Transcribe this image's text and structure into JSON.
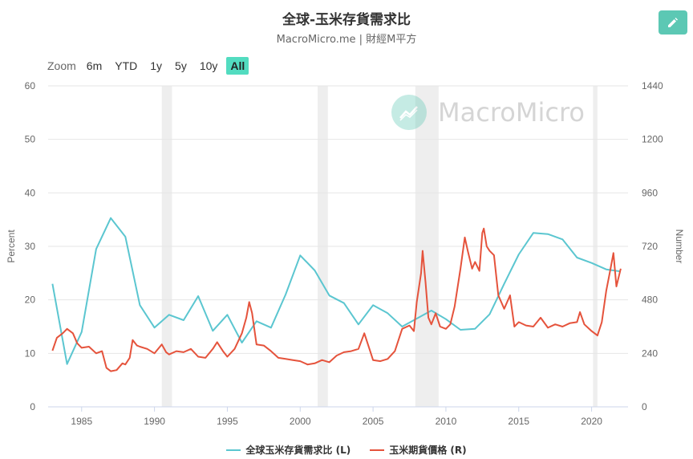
{
  "header": {
    "title": "全球-玉米存貨需求比",
    "subtitle": "MacroMicro.me | 財經M平方"
  },
  "toolbar": {
    "zoom_label": "Zoom",
    "ranges": [
      "6m",
      "YTD",
      "1y",
      "5y",
      "10y",
      "All"
    ],
    "active_range": "All",
    "edit_icon": "pencil-icon"
  },
  "watermark": {
    "text": "MacroMicro",
    "icon": "macromicro-logo-icon"
  },
  "colors": {
    "stock_ratio": "#5bc6d0",
    "price": "#e5533c",
    "recession": "#eeeeee",
    "grid": "#e6e6e6"
  },
  "chart_data": {
    "type": "line",
    "title": "全球-玉米存貨需求比",
    "subtitle": "MacroMicro.me | 財經M平方",
    "x_range": [
      1982.7,
      2022.5
    ],
    "x_ticks": [
      1985,
      1990,
      1995,
      2000,
      2005,
      2010,
      2015,
      2020
    ],
    "left_axis": {
      "label": "Percent",
      "range": [
        0,
        60
      ],
      "ticks": [
        0,
        10,
        20,
        30,
        40,
        50,
        60
      ]
    },
    "right_axis": {
      "label": "Number",
      "range": [
        0,
        1440
      ],
      "ticks": [
        0,
        240,
        480,
        720,
        960,
        1200,
        1440
      ]
    },
    "grid": true,
    "legend_position": "bottom",
    "recession_bands": [
      [
        1990.5,
        1991.2
      ],
      [
        2001.2,
        2001.9
      ],
      [
        2007.9,
        2009.5
      ],
      [
        2020.1,
        2020.4
      ]
    ],
    "series": [
      {
        "name": "全球玉米存貨需求比 (L)",
        "axis": "left",
        "color": "#5bc6d0",
        "points": [
          [
            1983,
            23
          ],
          [
            1984,
            8
          ],
          [
            1985,
            14
          ],
          [
            1986,
            29.5
          ],
          [
            1987,
            35.3
          ],
          [
            1988,
            31.8
          ],
          [
            1989,
            19
          ],
          [
            1990,
            14.8
          ],
          [
            1991,
            17.2
          ],
          [
            1992,
            16.2
          ],
          [
            1993,
            20.7
          ],
          [
            1994,
            14.2
          ],
          [
            1995,
            17.2
          ],
          [
            1996,
            12
          ],
          [
            1997,
            16
          ],
          [
            1998,
            14.8
          ],
          [
            1999,
            21
          ],
          [
            2000,
            28.3
          ],
          [
            2001,
            25.5
          ],
          [
            2002,
            20.8
          ],
          [
            2003,
            19.4
          ],
          [
            2004,
            15.4
          ],
          [
            2005,
            19
          ],
          [
            2006,
            17.5
          ],
          [
            2007,
            15
          ],
          [
            2008,
            16.5
          ],
          [
            2009,
            18
          ],
          [
            2010,
            16.4
          ],
          [
            2011,
            14.4
          ],
          [
            2012,
            14.6
          ],
          [
            2013,
            17.3
          ],
          [
            2014,
            23
          ],
          [
            2015,
            28.5
          ],
          [
            2016,
            32.5
          ],
          [
            2017,
            32.3
          ],
          [
            2018,
            31.3
          ],
          [
            2019,
            27.9
          ],
          [
            2020,
            26.9
          ],
          [
            2021,
            25.7
          ],
          [
            2022,
            25.3
          ]
        ]
      },
      {
        "name": "玉米期貨價格 (R)",
        "axis": "right",
        "color": "#e5533c",
        "points": [
          [
            1983,
            252
          ],
          [
            1983.3,
            310
          ],
          [
            1983.7,
            330
          ],
          [
            1984,
            350
          ],
          [
            1984.4,
            330
          ],
          [
            1984.7,
            285
          ],
          [
            1985,
            265
          ],
          [
            1985.5,
            270
          ],
          [
            1986,
            240
          ],
          [
            1986.4,
            250
          ],
          [
            1986.7,
            175
          ],
          [
            1987,
            160
          ],
          [
            1987.4,
            165
          ],
          [
            1987.8,
            195
          ],
          [
            1988,
            190
          ],
          [
            1988.3,
            220
          ],
          [
            1988.5,
            300
          ],
          [
            1988.8,
            275
          ],
          [
            1989,
            270
          ],
          [
            1989.5,
            260
          ],
          [
            1990,
            240
          ],
          [
            1990.5,
            280
          ],
          [
            1990.8,
            245
          ],
          [
            1991,
            235
          ],
          [
            1991.5,
            250
          ],
          [
            1992,
            245
          ],
          [
            1992.5,
            260
          ],
          [
            1993,
            225
          ],
          [
            1993.5,
            220
          ],
          [
            1994,
            260
          ],
          [
            1994.3,
            290
          ],
          [
            1994.7,
            250
          ],
          [
            1995,
            225
          ],
          [
            1995.5,
            260
          ],
          [
            1996,
            330
          ],
          [
            1996.3,
            400
          ],
          [
            1996.5,
            470
          ],
          [
            1996.7,
            420
          ],
          [
            1997,
            280
          ],
          [
            1997.5,
            275
          ],
          [
            1998,
            250
          ],
          [
            1998.5,
            220
          ],
          [
            1999,
            215
          ],
          [
            1999.5,
            210
          ],
          [
            2000,
            205
          ],
          [
            2000.5,
            190
          ],
          [
            2001,
            195
          ],
          [
            2001.5,
            210
          ],
          [
            2002,
            200
          ],
          [
            2002.5,
            230
          ],
          [
            2003,
            245
          ],
          [
            2003.5,
            250
          ],
          [
            2004,
            260
          ],
          [
            2004.4,
            330
          ],
          [
            2004.8,
            250
          ],
          [
            2005,
            210
          ],
          [
            2005.5,
            205
          ],
          [
            2006,
            215
          ],
          [
            2006.5,
            250
          ],
          [
            2007,
            350
          ],
          [
            2007.5,
            365
          ],
          [
            2007.8,
            340
          ],
          [
            2008,
            470
          ],
          [
            2008.3,
            600
          ],
          [
            2008.4,
            700
          ],
          [
            2008.6,
            560
          ],
          [
            2008.8,
            400
          ],
          [
            2009,
            370
          ],
          [
            2009.3,
            420
          ],
          [
            2009.6,
            360
          ],
          [
            2010,
            350
          ],
          [
            2010.3,
            370
          ],
          [
            2010.6,
            450
          ],
          [
            2011,
            620
          ],
          [
            2011.3,
            760
          ],
          [
            2011.5,
            700
          ],
          [
            2011.8,
            620
          ],
          [
            2012,
            650
          ],
          [
            2012.3,
            610
          ],
          [
            2012.5,
            780
          ],
          [
            2012.6,
            800
          ],
          [
            2012.8,
            720
          ],
          [
            2013,
            700
          ],
          [
            2013.3,
            680
          ],
          [
            2013.6,
            500
          ],
          [
            2014,
            440
          ],
          [
            2014.4,
            500
          ],
          [
            2014.7,
            360
          ],
          [
            2015,
            380
          ],
          [
            2015.5,
            365
          ],
          [
            2016,
            360
          ],
          [
            2016.5,
            400
          ],
          [
            2017,
            355
          ],
          [
            2017.5,
            370
          ],
          [
            2018,
            360
          ],
          [
            2018.5,
            375
          ],
          [
            2019,
            380
          ],
          [
            2019.2,
            425
          ],
          [
            2019.5,
            370
          ],
          [
            2020,
            340
          ],
          [
            2020.4,
            320
          ],
          [
            2020.7,
            380
          ],
          [
            2021,
            520
          ],
          [
            2021.3,
            620
          ],
          [
            2021.5,
            690
          ],
          [
            2021.7,
            540
          ],
          [
            2022,
            620
          ]
        ]
      }
    ]
  }
}
